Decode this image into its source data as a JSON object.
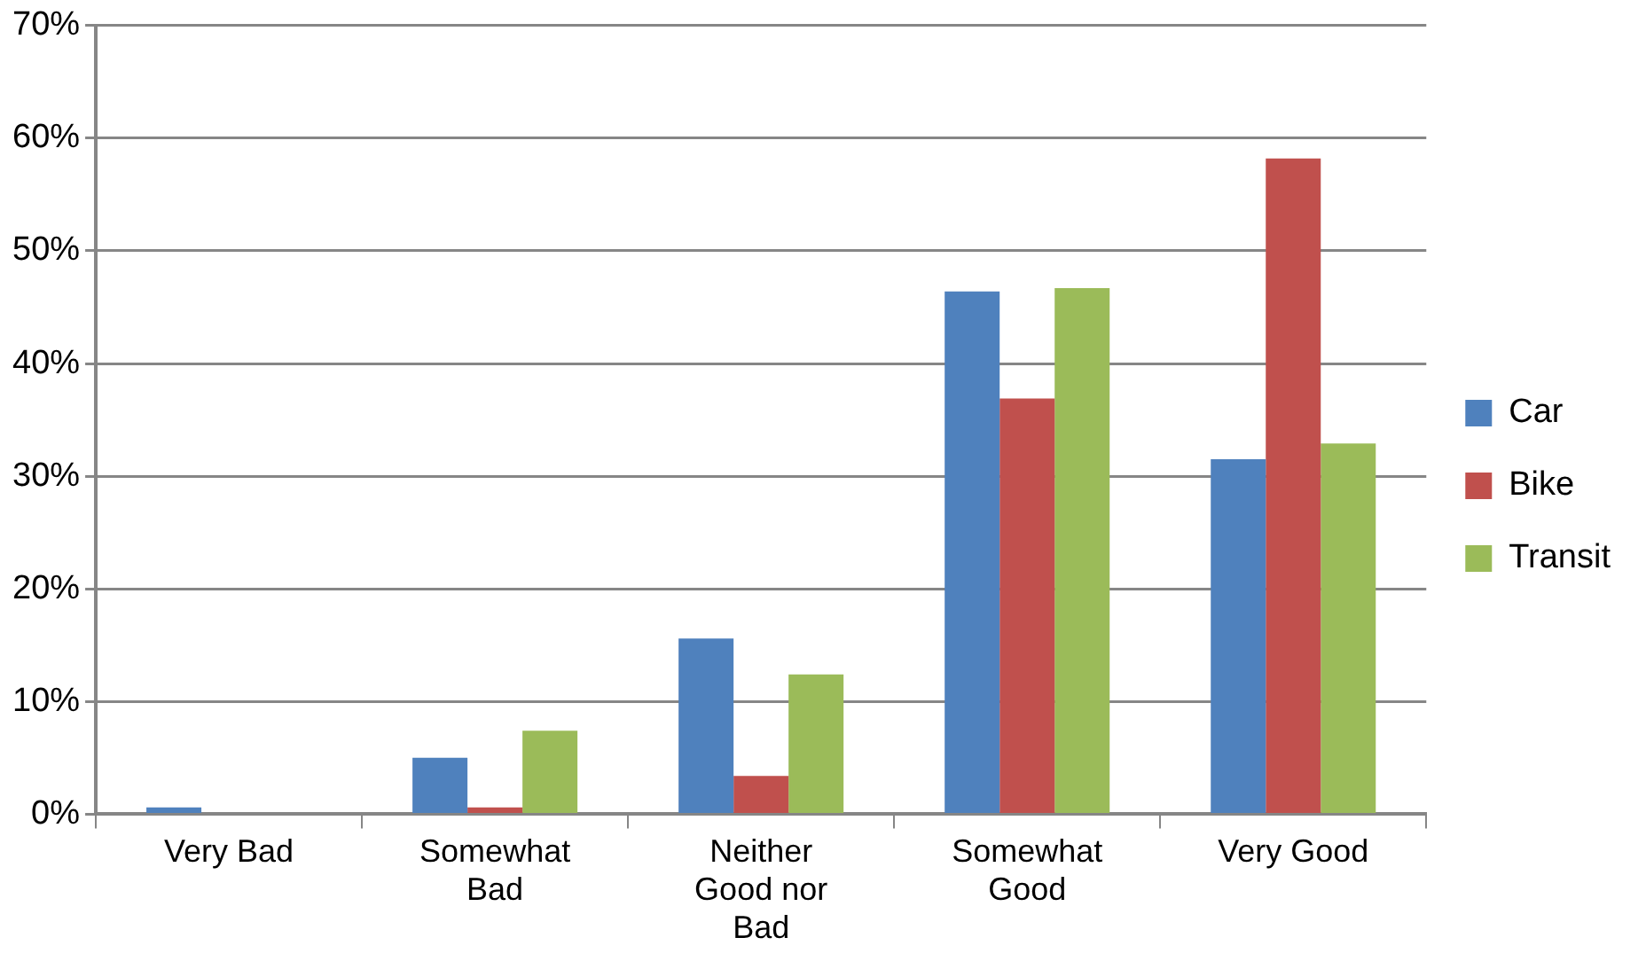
{
  "chart_data": {
    "type": "bar",
    "categories": [
      "Very Bad",
      "Somewhat Bad",
      "Neither Good nor Bad",
      "Somewhat Good",
      "Very Good"
    ],
    "series": [
      {
        "name": "Car",
        "color": "#4f81bd",
        "values": [
          0.6,
          5.0,
          15.6,
          46.4,
          31.5
        ]
      },
      {
        "name": "Bike",
        "color": "#c0504d",
        "values": [
          0,
          0.6,
          3.4,
          36.9,
          58.2
        ]
      },
      {
        "name": "Transit",
        "color": "#9bbb59",
        "values": [
          0,
          7.4,
          12.4,
          46.7,
          32.9
        ]
      }
    ],
    "ylim": [
      0,
      70
    ],
    "yticks": [
      {
        "value": 0,
        "label": "0%"
      },
      {
        "value": 10,
        "label": "10%"
      },
      {
        "value": 20,
        "label": "20%"
      },
      {
        "value": 30,
        "label": "30%"
      },
      {
        "value": 40,
        "label": "40%"
      },
      {
        "value": 50,
        "label": "50%"
      },
      {
        "value": 60,
        "label": "60%"
      },
      {
        "value": 70,
        "label": "70%"
      }
    ],
    "grid": "y",
    "legend": "right"
  }
}
